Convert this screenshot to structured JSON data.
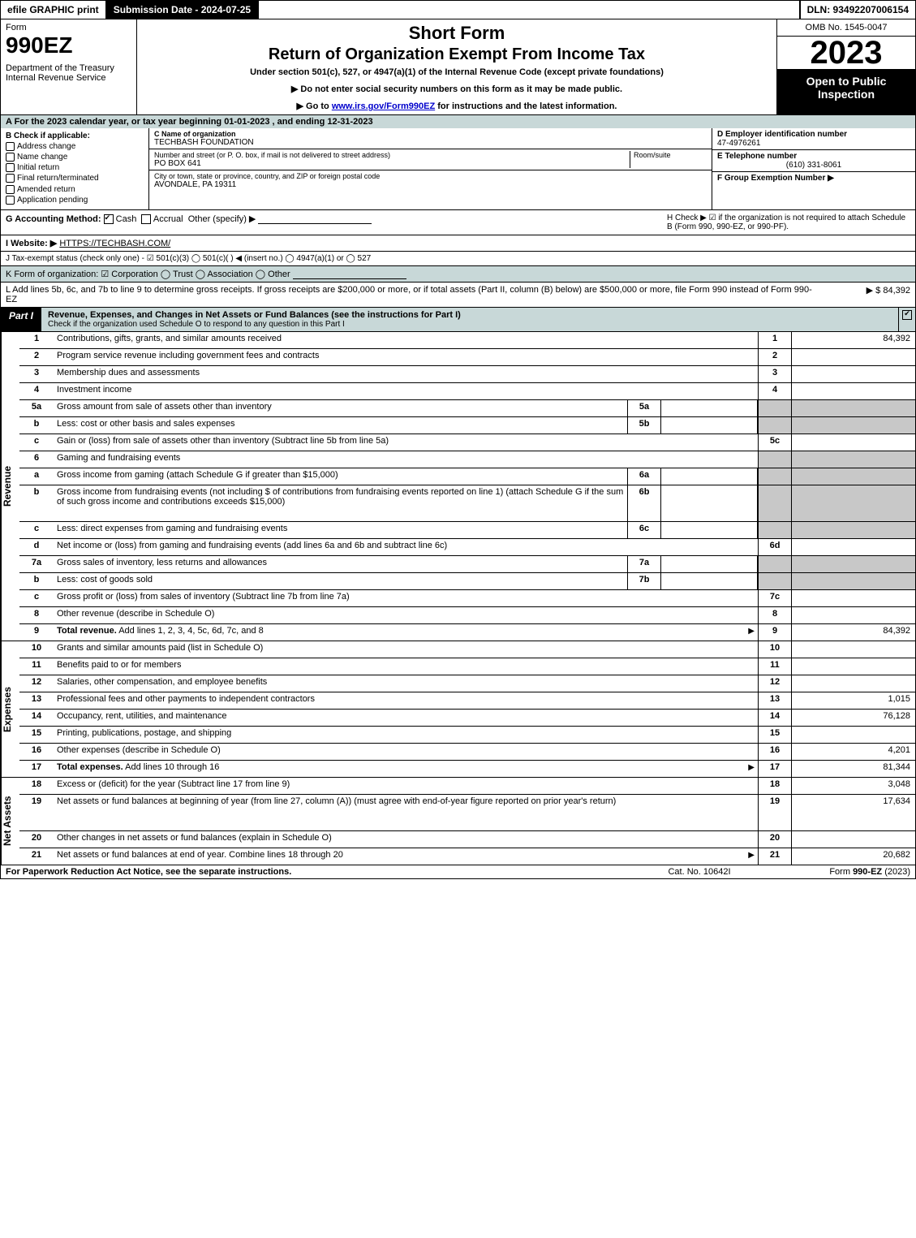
{
  "topbar": {
    "efile": "efile GRAPHIC print",
    "submission": "Submission Date - 2024-07-25",
    "dln": "DLN: 93492207006154"
  },
  "header": {
    "form_word": "Form",
    "form_number": "990EZ",
    "dept": "Department of the Treasury\nInternal Revenue Service",
    "short_form": "Short Form",
    "title": "Return of Organization Exempt From Income Tax",
    "sub1": "Under section 501(c), 527, or 4947(a)(1) of the Internal Revenue Code (except private foundations)",
    "sub2": "▶ Do not enter social security numbers on this form as it may be made public.",
    "sub3_pre": "▶ Go to ",
    "sub3_link": "www.irs.gov/Form990EZ",
    "sub3_post": " for instructions and the latest information.",
    "omb": "OMB No. 1545-0047",
    "year": "2023",
    "open": "Open to Public Inspection"
  },
  "lineA": "A  For the 2023 calendar year, or tax year beginning 01-01-2023 , and ending 12-31-2023",
  "sectionB": {
    "label": "B  Check if applicable:",
    "opts": [
      "Address change",
      "Name change",
      "Initial return",
      "Final return/terminated",
      "Amended return",
      "Application pending"
    ]
  },
  "sectionC": {
    "name_label": "C Name of organization",
    "name": "TECHBASH FOUNDATION",
    "street_label": "Number and street (or P. O. box, if mail is not delivered to street address)",
    "room_label": "Room/suite",
    "street": "PO BOX 641",
    "city_label": "City or town, state or province, country, and ZIP or foreign postal code",
    "city": "AVONDALE, PA  19311"
  },
  "sectionDEF": {
    "d_label": "D Employer identification number",
    "d_value": "47-4976261",
    "e_label": "E Telephone number",
    "e_value": "(610) 331-8061",
    "f_label": "F Group Exemption Number  ▶"
  },
  "lineG": {
    "label": "G Accounting Method:",
    "cash": "Cash",
    "accrual": "Accrual",
    "other": "Other (specify) ▶"
  },
  "lineH": "H  Check ▶ ☑ if the organization is not required to attach Schedule B (Form 990, 990-EZ, or 990-PF).",
  "lineI": {
    "label": "I Website: ▶",
    "value": "HTTPS://TECHBASH.COM/"
  },
  "lineJ": "J Tax-exempt status (check only one) - ☑ 501(c)(3)  ◯ 501(c)(  ) ◀ (insert no.)  ◯ 4947(a)(1) or  ◯ 527",
  "lineK": "K Form of organization:  ☑ Corporation  ◯ Trust  ◯ Association  ◯ Other",
  "lineL": {
    "text": "L Add lines 5b, 6c, and 7b to line 9 to determine gross receipts. If gross receipts are $200,000 or more, or if total assets (Part II, column (B) below) are $500,000 or more, file Form 990 instead of Form 990-EZ",
    "amount": "▶ $ 84,392"
  },
  "partI": {
    "tab": "Part I",
    "title": "Revenue, Expenses, and Changes in Net Assets or Fund Balances (see the instructions for Part I)",
    "sub": "Check if the organization used Schedule O to respond to any question in this Part I"
  },
  "sections": {
    "revenue": "Revenue",
    "expenses": "Expenses",
    "netassets": "Net Assets"
  },
  "rows": [
    {
      "n": "1",
      "d": "Contributions, gifts, grants, and similar amounts received",
      "rn": "1",
      "rv": "84,392"
    },
    {
      "n": "2",
      "d": "Program service revenue including government fees and contracts",
      "rn": "2",
      "rv": ""
    },
    {
      "n": "3",
      "d": "Membership dues and assessments",
      "rn": "3",
      "rv": ""
    },
    {
      "n": "4",
      "d": "Investment income",
      "rn": "4",
      "rv": ""
    },
    {
      "n": "5a",
      "d": "Gross amount from sale of assets other than inventory",
      "sn": "5a",
      "sv": "",
      "shade": true
    },
    {
      "n": "b",
      "d": "Less: cost or other basis and sales expenses",
      "sn": "5b",
      "sv": "",
      "shade": true
    },
    {
      "n": "c",
      "d": "Gain or (loss) from sale of assets other than inventory (Subtract line 5b from line 5a)",
      "rn": "5c",
      "rv": ""
    },
    {
      "n": "6",
      "d": "Gaming and fundraising events",
      "shade": true,
      "noRight": true
    },
    {
      "n": "a",
      "d": "Gross income from gaming (attach Schedule G if greater than $15,000)",
      "sn": "6a",
      "sv": "",
      "shade": true
    },
    {
      "n": "b",
      "d": "Gross income from fundraising events (not including $                    of contributions from fundraising events reported on line 1) (attach Schedule G if the sum of such gross income and contributions exceeds $15,000)",
      "sn": "6b",
      "sv": "",
      "shade": true,
      "tall": true
    },
    {
      "n": "c",
      "d": "Less: direct expenses from gaming and fundraising events",
      "sn": "6c",
      "sv": "",
      "shade": true
    },
    {
      "n": "d",
      "d": "Net income or (loss) from gaming and fundraising events (add lines 6a and 6b and subtract line 6c)",
      "rn": "6d",
      "rv": ""
    },
    {
      "n": "7a",
      "d": "Gross sales of inventory, less returns and allowances",
      "sn": "7a",
      "sv": "",
      "shade": true
    },
    {
      "n": "b",
      "d": "Less: cost of goods sold",
      "sn": "7b",
      "sv": "",
      "shade": true
    },
    {
      "n": "c",
      "d": "Gross profit or (loss) from sales of inventory (Subtract line 7b from line 7a)",
      "rn": "7c",
      "rv": ""
    },
    {
      "n": "8",
      "d": "Other revenue (describe in Schedule O)",
      "rn": "8",
      "rv": ""
    },
    {
      "n": "9",
      "d": "Total revenue. Add lines 1, 2, 3, 4, 5c, 6d, 7c, and 8",
      "rn": "9",
      "rv": "84,392",
      "bold": true,
      "arrow": true
    }
  ],
  "expRows": [
    {
      "n": "10",
      "d": "Grants and similar amounts paid (list in Schedule O)",
      "rn": "10",
      "rv": ""
    },
    {
      "n": "11",
      "d": "Benefits paid to or for members",
      "rn": "11",
      "rv": ""
    },
    {
      "n": "12",
      "d": "Salaries, other compensation, and employee benefits",
      "rn": "12",
      "rv": ""
    },
    {
      "n": "13",
      "d": "Professional fees and other payments to independent contractors",
      "rn": "13",
      "rv": "1,015"
    },
    {
      "n": "14",
      "d": "Occupancy, rent, utilities, and maintenance",
      "rn": "14",
      "rv": "76,128"
    },
    {
      "n": "15",
      "d": "Printing, publications, postage, and shipping",
      "rn": "15",
      "rv": ""
    },
    {
      "n": "16",
      "d": "Other expenses (describe in Schedule O)",
      "rn": "16",
      "rv": "4,201"
    },
    {
      "n": "17",
      "d": "Total expenses. Add lines 10 through 16",
      "rn": "17",
      "rv": "81,344",
      "bold": true,
      "arrow": true
    }
  ],
  "netRows": [
    {
      "n": "18",
      "d": "Excess or (deficit) for the year (Subtract line 17 from line 9)",
      "rn": "18",
      "rv": "3,048"
    },
    {
      "n": "19",
      "d": "Net assets or fund balances at beginning of year (from line 27, column (A)) (must agree with end-of-year figure reported on prior year's return)",
      "rn": "19",
      "rv": "17,634",
      "tall": true
    },
    {
      "n": "20",
      "d": "Other changes in net assets or fund balances (explain in Schedule O)",
      "rn": "20",
      "rv": ""
    },
    {
      "n": "21",
      "d": "Net assets or fund balances at end of year. Combine lines 18 through 20",
      "rn": "21",
      "rv": "20,682",
      "arrow": true
    }
  ],
  "footer": {
    "left": "For Paperwork Reduction Act Notice, see the separate instructions.",
    "center": "Cat. No. 10642I",
    "right_pre": "Form ",
    "right_bold": "990-EZ",
    "right_post": " (2023)"
  },
  "colors": {
    "shade": "#c8d8d8",
    "grayfill": "#c8c8c8"
  }
}
